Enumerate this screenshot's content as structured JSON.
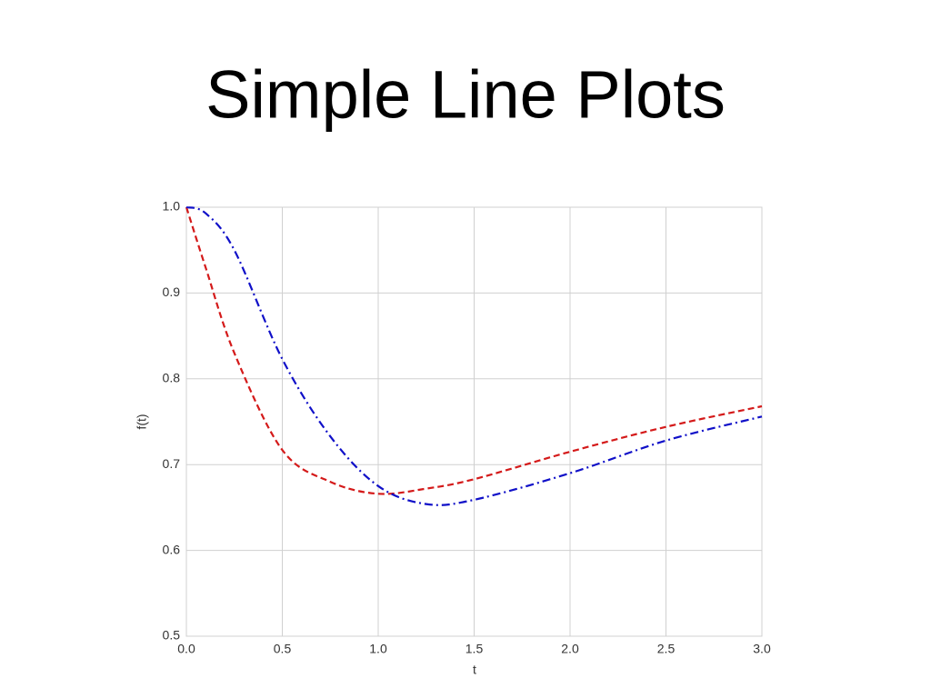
{
  "chart_data": {
    "type": "line",
    "title": "Simple Line Plots",
    "xlabel": "t",
    "ylabel": "f(t)",
    "x": [
      0,
      0.1,
      0.25,
      0.5,
      0.75,
      1,
      1.25,
      1.5,
      2,
      2.5,
      3
    ],
    "series": [
      {
        "color": "#d41a1a",
        "linestyle": "dashed",
        "values": [
          1.0,
          0.93,
          0.83,
          0.717,
          0.68,
          0.666,
          0.672,
          0.683,
          0.715,
          0.744,
          0.768
        ]
      },
      {
        "color": "#1010c8",
        "linestyle": "dashdot",
        "values": [
          1.0,
          0.993,
          0.95,
          0.823,
          0.733,
          0.675,
          0.654,
          0.659,
          0.69,
          0.728,
          0.756
        ]
      }
    ],
    "xlim": [
      0,
      3
    ],
    "ylim": [
      0.5,
      1.0
    ],
    "xticks": [
      {
        "value": 0,
        "label": "0.0"
      },
      0.5,
      {
        "value": 1,
        "label": "1.0"
      },
      1.5,
      {
        "value": 2,
        "label": "2.0"
      },
      2.5,
      {
        "value": 3,
        "label": "3.0"
      }
    ],
    "yticks": [
      0.5,
      0.6,
      0.7,
      0.8,
      0.9,
      {
        "value": 1,
        "label": "1.0"
      }
    ],
    "grid": true
  }
}
